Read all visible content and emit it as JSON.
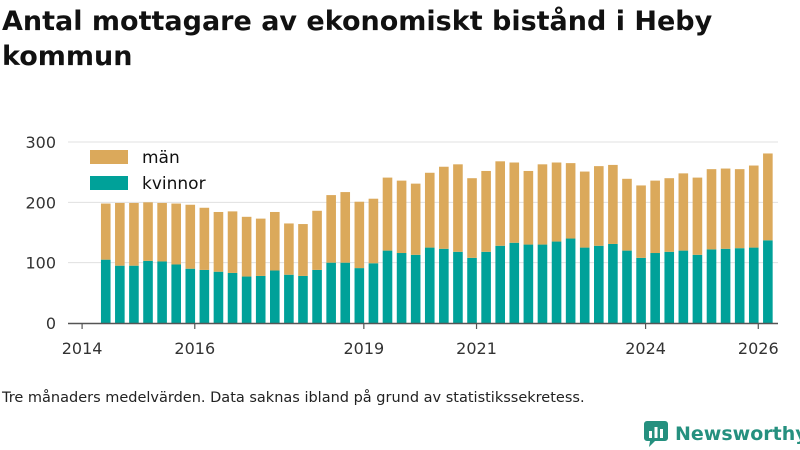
{
  "title": "Antal mottagare av ekonomiskt bistånd i Heby kommun",
  "caption": "Tre månaders medelvärden. Data saknas ibland på grund av statistikssekretess.",
  "brand": {
    "name": "Newsworthy",
    "icon": "bar-chart-logo-icon",
    "color": "#25907f"
  },
  "chart_data": {
    "type": "bar",
    "stacked": true,
    "title": "Antal mottagare av ekonomiskt bistånd i Heby kommun",
    "xlabel": "",
    "ylabel": "",
    "ylim": [
      0,
      300
    ],
    "yticks": [
      0,
      100,
      200,
      300
    ],
    "xlim": [
      2013.75,
      2026.35
    ],
    "xticks": [
      2014,
      2016,
      2019,
      2021,
      2024,
      2026
    ],
    "grid": true,
    "legend_position": "top-left",
    "x": [
      2014.42,
      2014.67,
      2014.92,
      2015.17,
      2015.42,
      2015.67,
      2015.92,
      2016.17,
      2016.42,
      2016.67,
      2016.92,
      2017.17,
      2017.42,
      2017.67,
      2017.92,
      2018.17,
      2018.42,
      2018.67,
      2018.92,
      2019.17,
      2019.42,
      2019.67,
      2019.92,
      2020.17,
      2020.42,
      2020.67,
      2020.92,
      2021.17,
      2021.42,
      2021.67,
      2021.92,
      2022.17,
      2022.42,
      2022.67,
      2022.92,
      2023.17,
      2023.42,
      2023.67,
      2023.92,
      2024.17,
      2024.42,
      2024.67,
      2024.92,
      2025.17,
      2025.42,
      2025.67,
      2025.92,
      2026.17
    ],
    "series": [
      {
        "name": "kvinnor",
        "color": "#00a199",
        "values": [
          105,
          95,
          95,
          103,
          102,
          97,
          90,
          88,
          85,
          83,
          77,
          78,
          87,
          80,
          78,
          88,
          100,
          100,
          91,
          99,
          120,
          116,
          113,
          125,
          123,
          118,
          108,
          118,
          128,
          133,
          130,
          130,
          135,
          140,
          125,
          128,
          131,
          120,
          108,
          116,
          118,
          120,
          113,
          122,
          123,
          124,
          125,
          137
        ]
      },
      {
        "name": "män",
        "color": "#dba95b",
        "values": [
          93,
          104,
          104,
          97,
          97,
          101,
          106,
          103,
          99,
          102,
          99,
          95,
          97,
          85,
          86,
          98,
          112,
          117,
          110,
          107,
          121,
          120,
          118,
          124,
          136,
          145,
          132,
          134,
          140,
          133,
          122,
          133,
          131,
          125,
          126,
          132,
          131,
          119,
          120,
          120,
          122,
          128,
          128,
          133,
          133,
          131,
          136,
          144
        ]
      }
    ]
  }
}
